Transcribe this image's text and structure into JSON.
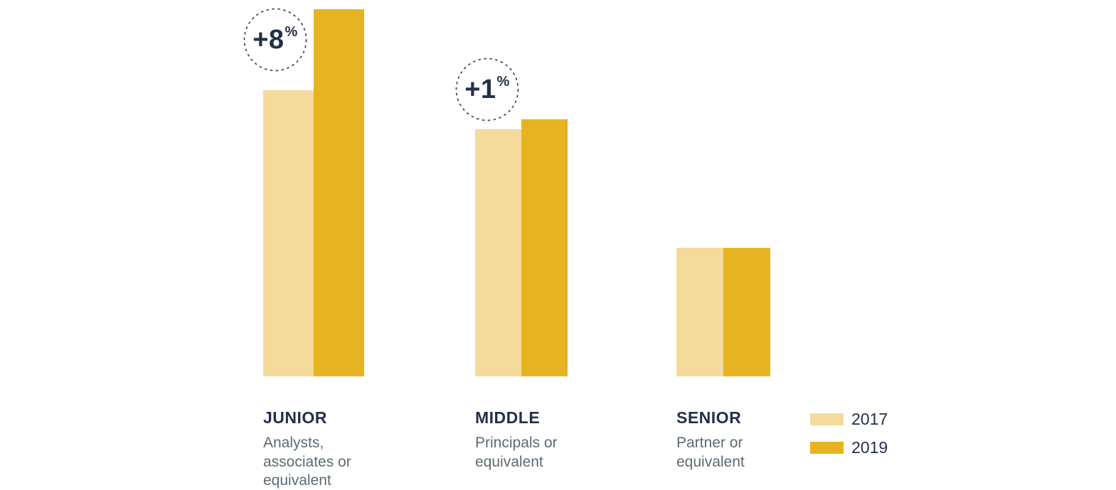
{
  "chart_data": {
    "type": "bar",
    "title": "",
    "xlabel": "",
    "ylabel": "",
    "ylim": [
      0,
      100
    ],
    "axes_visible": false,
    "grid": false,
    "legend_position": "bottom-right",
    "series_names": [
      "2017",
      "2019"
    ],
    "palette": {
      "c2017": "#F4DB9B",
      "c2019": "#E6B422"
    },
    "text_colors": {
      "navy": "#233049",
      "slate": "#5C6B74"
    },
    "groups": [
      {
        "label": "JUNIOR",
        "sublabel": "Analysts,\nassociates or\nequivalent",
        "delta": {
          "value": "+8",
          "unit": "%"
        },
        "values": {
          "2017": 78,
          "2019": 100
        }
      },
      {
        "label": "MIDDLE",
        "sublabel": "Principals or\nequivalent",
        "delta": {
          "value": "+1",
          "unit": "%"
        },
        "values": {
          "2017": 67.3,
          "2019": 70
        }
      },
      {
        "label": "SENIOR",
        "sublabel": "Partner or\nequivalent",
        "delta": null,
        "values": {
          "2017": 35,
          "2019": 35
        }
      }
    ],
    "legend": [
      {
        "label": "2017",
        "swatch": "#F4DB9B"
      },
      {
        "label": "2019",
        "swatch": "#E6B422"
      }
    ]
  }
}
